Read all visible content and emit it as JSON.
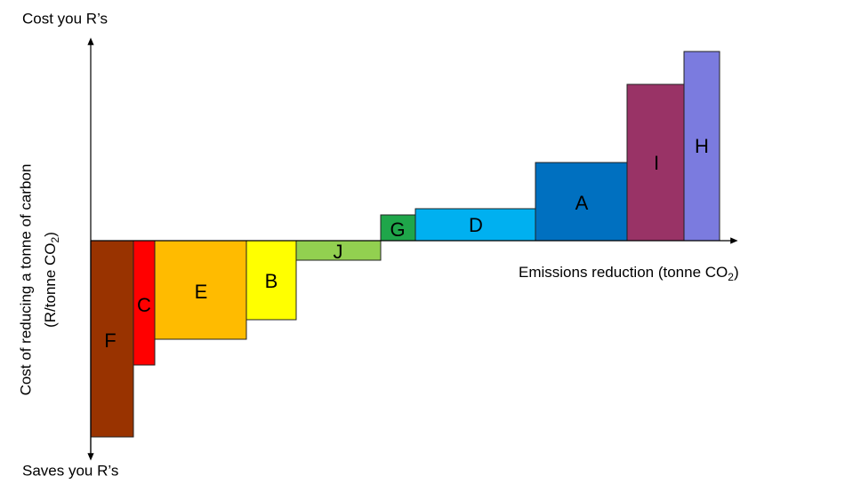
{
  "top_label": "Cost you R’s",
  "bottom_label": "Saves you R’s",
  "y_axis_label": {
    "line1": "Cost of reducing a tonne of carbon",
    "line2": [
      "(R/tonne CO",
      "2",
      ")"
    ]
  },
  "x_axis_label": [
    "Emissions reduction (tonne CO",
    "2",
    ")"
  ],
  "bars": [
    "F",
    "C",
    "E",
    "B",
    "J",
    "G",
    "D",
    "A",
    "I",
    "H"
  ]
}
